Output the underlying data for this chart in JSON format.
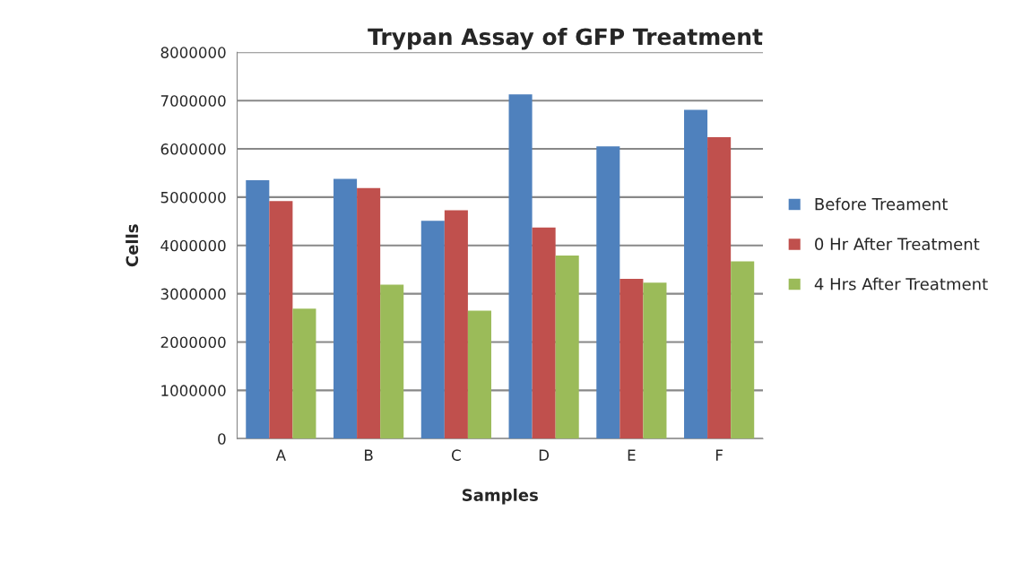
{
  "chart_data": {
    "type": "bar",
    "title": "Trypan Assay of GFP Treatment",
    "xlabel": "Samples",
    "ylabel": "Cells",
    "categories": [
      "A",
      "B",
      "C",
      "D",
      "E",
      "F"
    ],
    "series": [
      {
        "name": "Before Treament",
        "color": "#4f81bd",
        "values": [
          5350000,
          5380000,
          4510000,
          7130000,
          6050000,
          6810000
        ]
      },
      {
        "name": "0 Hr After Treatment",
        "color": "#c0504d",
        "values": [
          4920000,
          5190000,
          4730000,
          4370000,
          3310000,
          6240000
        ]
      },
      {
        "name": "4 Hrs After Treatment",
        "color": "#9bbb59",
        "values": [
          2690000,
          3190000,
          2650000,
          3790000,
          3230000,
          3670000
        ]
      }
    ],
    "ylim": [
      0,
      8000000
    ],
    "yticks": [
      0,
      1000000,
      2000000,
      3000000,
      4000000,
      5000000,
      6000000,
      7000000,
      8000000
    ],
    "grid": "y",
    "legend": "right"
  }
}
